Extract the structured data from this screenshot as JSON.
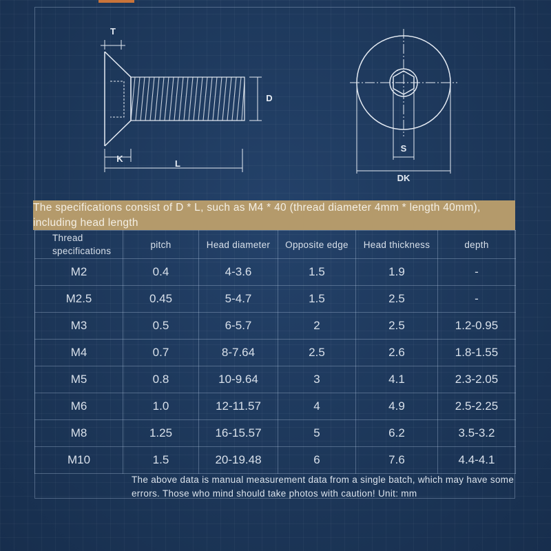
{
  "diagram": {
    "side_labels": {
      "t": "T",
      "d": "D",
      "k": "K",
      "l": "L"
    },
    "top_labels": {
      "s": "S",
      "dk": "DK"
    }
  },
  "banner": "The specifications consist of D * L, such as M4 * 40 (thread diameter 4mm * length 40mm), including head length",
  "table": {
    "headers": [
      "Thread specifications",
      "pitch",
      "Head diameter",
      "Opposite edge",
      "Head thickness",
      "depth"
    ],
    "rows": [
      [
        "M2",
        "0.4",
        "4-3.6",
        "1.5",
        "1.9",
        "-"
      ],
      [
        "M2.5",
        "0.45",
        "5-4.7",
        "1.5",
        "2.5",
        "-"
      ],
      [
        "M3",
        "0.5",
        "6-5.7",
        "2",
        "2.5",
        "1.2-0.95"
      ],
      [
        "M4",
        "0.7",
        "8-7.64",
        "2.5",
        "2.6",
        "1.8-1.55"
      ],
      [
        "M5",
        "0.8",
        "10-9.64",
        "3",
        "4.1",
        "2.3-2.05"
      ],
      [
        "M6",
        "1.0",
        "12-11.57",
        "4",
        "4.9",
        "2.5-2.25"
      ],
      [
        "M8",
        "1.25",
        "16-15.57",
        "5",
        "6.2",
        "3.5-3.2"
      ],
      [
        "M10",
        "1.5",
        "20-19.48",
        "6",
        "7.6",
        "4.4-4.1"
      ]
    ]
  },
  "footnote": "The above data is manual measurement data from a single batch, which may have some errors. Those who mind should take photos with caution! Unit: mm"
}
